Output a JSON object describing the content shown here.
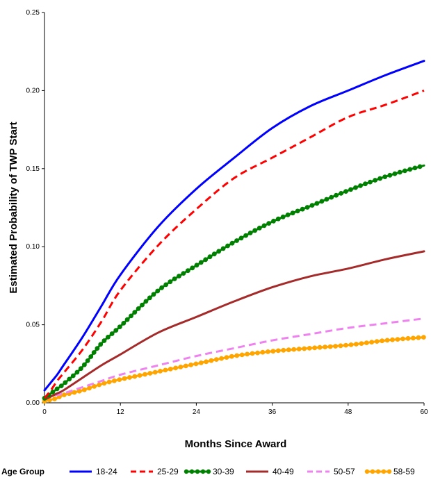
{
  "chart_data": {
    "type": "line",
    "title": "",
    "xlabel": "Months Since Award",
    "ylabel": "Estimated Probability of TWP Start",
    "xlim": [
      0,
      60
    ],
    "ylim": [
      0,
      0.25
    ],
    "x_ticks": [
      "0",
      "12",
      "24",
      "36",
      "48",
      "60"
    ],
    "y_ticks": [
      "0.00",
      "0.05",
      "0.10",
      "0.15",
      "0.20",
      "0.25"
    ],
    "legend_title": "Age Group",
    "legend_position": "bottom",
    "x": [
      0,
      1,
      2,
      3,
      6,
      9,
      12,
      18,
      24,
      30,
      36,
      42,
      48,
      54,
      60
    ],
    "series": [
      {
        "name": "18-24",
        "color": "#0000ff",
        "style": "solid",
        "values": [
          0.008,
          0.013,
          0.018,
          0.024,
          0.042,
          0.062,
          0.082,
          0.113,
          0.137,
          0.157,
          0.176,
          0.19,
          0.2,
          0.21,
          0.219
        ]
      },
      {
        "name": "25-29",
        "color": "#ff0000",
        "style": "dashed",
        "values": [
          0.003,
          0.008,
          0.014,
          0.019,
          0.034,
          0.052,
          0.072,
          0.101,
          0.124,
          0.144,
          0.157,
          0.17,
          0.183,
          0.191,
          0.2
        ]
      },
      {
        "name": "30-39",
        "color": "#008000",
        "style": "solid-dots",
        "values": [
          0.003,
          0.006,
          0.009,
          0.012,
          0.023,
          0.038,
          0.049,
          0.072,
          0.088,
          0.103,
          0.116,
          0.126,
          0.136,
          0.145,
          0.152
        ]
      },
      {
        "name": "40-49",
        "color": "#a52a2a",
        "style": "solid",
        "values": [
          0.002,
          0.004,
          0.006,
          0.008,
          0.016,
          0.024,
          0.031,
          0.045,
          0.055,
          0.065,
          0.074,
          0.081,
          0.086,
          0.092,
          0.097
        ]
      },
      {
        "name": "50-57",
        "color": "#ee82ee",
        "style": "dashed",
        "values": [
          0.003,
          0.004,
          0.005,
          0.006,
          0.01,
          0.014,
          0.018,
          0.024,
          0.03,
          0.035,
          0.04,
          0.044,
          0.048,
          0.051,
          0.054
        ]
      },
      {
        "name": "58-59",
        "color": "#ffa500",
        "style": "solid-dots",
        "values": [
          0.001,
          0.002,
          0.003,
          0.005,
          0.008,
          0.012,
          0.015,
          0.02,
          0.025,
          0.03,
          0.033,
          0.035,
          0.037,
          0.04,
          0.042
        ]
      }
    ]
  }
}
